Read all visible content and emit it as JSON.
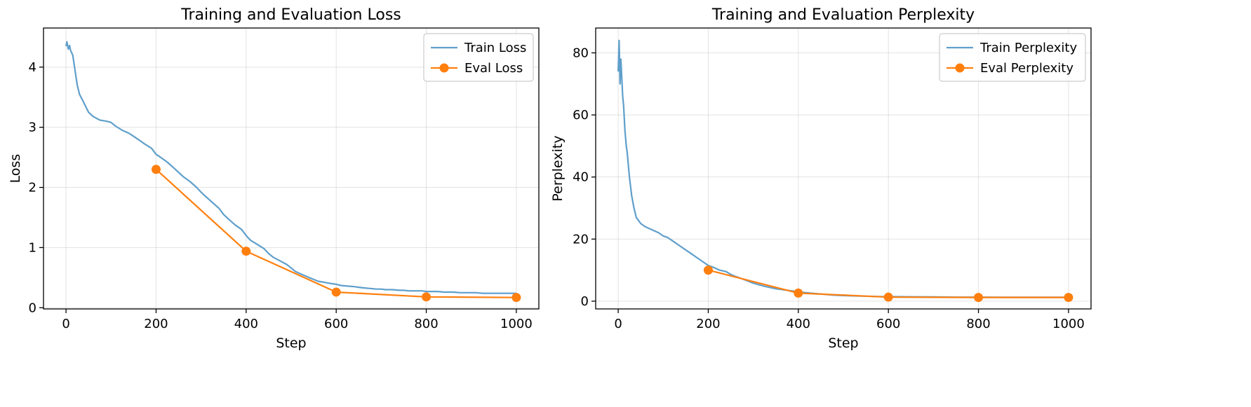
{
  "colors": {
    "train": "#5f9fcb",
    "eval": "#ff7f0e"
  },
  "chart_data": [
    {
      "type": "line",
      "title": "Training and Evaluation Loss",
      "xlabel": "Step",
      "ylabel": "Loss",
      "xlim": [
        -50,
        1050
      ],
      "ylim": [
        -0.02,
        4.65
      ],
      "xticks": [
        0,
        200,
        400,
        600,
        800,
        1000
      ],
      "yticks": [
        0,
        1,
        2,
        3,
        4
      ],
      "grid": true,
      "legend_position": "top-right",
      "series": [
        {
          "name": "Train Loss",
          "x": [
            0,
            2,
            5,
            8,
            10,
            15,
            20,
            25,
            30,
            40,
            50,
            60,
            75,
            90,
            100,
            110,
            125,
            140,
            150,
            160,
            175,
            190,
            200,
            210,
            225,
            240,
            250,
            260,
            275,
            290,
            300,
            310,
            325,
            340,
            350,
            360,
            375,
            390,
            400,
            410,
            425,
            440,
            450,
            460,
            475,
            490,
            500,
            510,
            525,
            540,
            550,
            560,
            575,
            590,
            600,
            610,
            625,
            640,
            650,
            660,
            675,
            690,
            700,
            710,
            725,
            740,
            750,
            760,
            775,
            790,
            800,
            810,
            825,
            840,
            850,
            860,
            875,
            890,
            900,
            910,
            925,
            940,
            950,
            960,
            975,
            990,
            1000
          ],
          "y": [
            4.35,
            4.42,
            4.3,
            4.36,
            4.28,
            4.2,
            3.95,
            3.7,
            3.55,
            3.4,
            3.25,
            3.18,
            3.12,
            3.1,
            3.08,
            3.02,
            2.95,
            2.9,
            2.85,
            2.8,
            2.72,
            2.65,
            2.55,
            2.5,
            2.42,
            2.32,
            2.25,
            2.18,
            2.1,
            2.0,
            1.92,
            1.85,
            1.75,
            1.65,
            1.55,
            1.48,
            1.38,
            1.3,
            1.2,
            1.12,
            1.05,
            0.98,
            0.9,
            0.84,
            0.78,
            0.72,
            0.66,
            0.6,
            0.55,
            0.5,
            0.47,
            0.44,
            0.42,
            0.4,
            0.39,
            0.37,
            0.36,
            0.35,
            0.34,
            0.33,
            0.32,
            0.31,
            0.31,
            0.3,
            0.3,
            0.29,
            0.29,
            0.28,
            0.28,
            0.28,
            0.27,
            0.27,
            0.27,
            0.26,
            0.26,
            0.26,
            0.25,
            0.25,
            0.25,
            0.25,
            0.24,
            0.24,
            0.24,
            0.24,
            0.24,
            0.24,
            0.24
          ]
        },
        {
          "name": "Eval Loss",
          "x": [
            200,
            400,
            600,
            800,
            1000
          ],
          "y": [
            2.3,
            0.94,
            0.26,
            0.18,
            0.17
          ]
        }
      ]
    },
    {
      "type": "line",
      "title": "Training and Evaluation Perplexity",
      "xlabel": "Step",
      "ylabel": "Perplexity",
      "xlim": [
        -50,
        1050
      ],
      "ylim": [
        -2.5,
        88
      ],
      "xticks": [
        0,
        200,
        400,
        600,
        800,
        1000
      ],
      "yticks": [
        0,
        20,
        40,
        60,
        80
      ],
      "grid": true,
      "legend_position": "top-right",
      "series": [
        {
          "name": "Train Perplexity",
          "x": [
            0,
            2,
            4,
            6,
            8,
            10,
            12,
            15,
            18,
            20,
            25,
            30,
            35,
            40,
            50,
            60,
            75,
            90,
            100,
            110,
            125,
            140,
            150,
            160,
            175,
            190,
            200,
            210,
            225,
            240,
            250,
            260,
            275,
            290,
            300,
            325,
            350,
            375,
            400,
            425,
            450,
            475,
            500,
            525,
            550,
            575,
            600,
            650,
            700,
            750,
            800,
            850,
            900,
            950,
            1000
          ],
          "y": [
            74,
            84,
            70,
            78,
            72,
            66,
            63,
            55,
            50,
            48,
            40,
            34,
            30,
            27,
            25,
            24,
            23,
            22,
            21,
            20.5,
            19,
            17.5,
            16.5,
            15.5,
            14,
            12.5,
            11.5,
            11,
            10,
            9.5,
            8.6,
            8,
            7.2,
            6.4,
            5.8,
            4.8,
            4,
            3.5,
            3.0,
            2.6,
            2.3,
            2.0,
            1.8,
            1.7,
            1.6,
            1.5,
            1.45,
            1.4,
            1.35,
            1.3,
            1.3,
            1.28,
            1.27,
            1.27,
            1.27
          ]
        },
        {
          "name": "Eval Perplexity",
          "x": [
            200,
            400,
            600,
            800,
            1000
          ],
          "y": [
            10,
            2.6,
            1.3,
            1.2,
            1.2
          ]
        }
      ]
    }
  ]
}
